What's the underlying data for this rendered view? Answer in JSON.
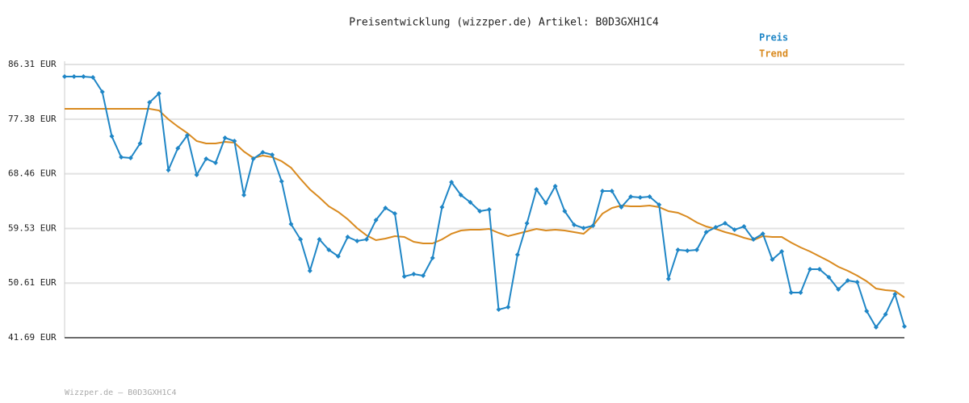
{
  "chart_data": {
    "type": "line",
    "title": "Preisentwicklung (wizzper.de) Artikel: B0D3GXH1C4",
    "footer": "Wizzper.de – B0D3GXH1C4",
    "legend_position": "top-right",
    "grid": true,
    "categories": [
      null,
      null,
      null,
      null,
      null,
      null,
      null,
      null,
      null,
      null,
      null,
      null,
      null,
      null,
      null,
      null,
      null,
      null,
      null,
      null,
      null,
      null,
      null,
      null,
      null,
      null,
      null,
      null,
      null,
      null,
      null,
      null,
      null,
      null,
      null,
      null,
      null,
      null,
      null,
      null,
      null,
      null,
      null,
      null,
      null,
      null,
      null,
      null,
      null,
      null,
      null,
      null,
      null,
      null,
      null,
      null,
      null,
      null,
      null,
      null,
      null,
      null,
      null,
      null,
      null,
      null,
      null,
      null,
      null,
      null,
      null,
      null,
      null,
      null,
      null,
      null,
      null,
      null,
      null,
      null,
      null,
      null,
      null,
      null,
      null,
      null,
      null,
      null,
      null,
      null
    ],
    "ylim": [
      41.69,
      86.31
    ],
    "yticks": [
      {
        "value": 41.69,
        "label": "41.69 EUR"
      },
      {
        "value": 50.61,
        "label": "50.61 EUR"
      },
      {
        "value": 59.53,
        "label": "59.53 EUR"
      },
      {
        "value": 68.46,
        "label": "68.46 EUR"
      },
      {
        "value": 77.38,
        "label": "77.38 EUR"
      },
      {
        "value": 86.31,
        "label": "86.31 EUR"
      }
    ],
    "series": [
      {
        "name": "Preis",
        "color": "#1f86c6",
        "markers": true,
        "values": [
          84.34,
          84.34,
          84.34,
          84.2,
          81.83,
          74.59,
          71.17,
          71.04,
          73.41,
          80.12,
          81.57,
          69.07,
          72.62,
          74.73,
          68.28,
          70.91,
          70.25,
          74.33,
          73.81,
          64.99,
          70.91,
          71.96,
          71.57,
          67.22,
          60.25,
          57.75,
          52.61,
          57.75,
          56.04,
          54.98,
          58.14,
          57.48,
          57.75,
          60.91,
          62.88,
          61.96,
          51.69,
          52.09,
          51.82,
          54.72,
          63.01,
          67.09,
          64.99,
          63.8,
          62.35,
          62.62,
          46.29,
          46.69,
          55.25,
          60.38,
          65.91,
          63.67,
          66.43,
          62.35,
          60.12,
          59.59,
          59.98,
          65.64,
          65.64,
          63.01,
          64.72,
          64.59,
          64.72,
          63.41,
          51.3,
          56.04,
          55.9,
          56.04,
          58.93,
          59.72,
          60.38,
          59.33,
          59.85,
          57.75,
          58.67,
          54.46,
          55.77,
          49.06,
          49.06,
          52.88,
          52.88,
          51.56,
          49.59,
          51.03,
          50.77,
          46.03,
          43.4,
          45.5,
          48.8,
          43.53
        ]
      },
      {
        "name": "Trend",
        "color": "#d98a1f",
        "markers": false,
        "values": [
          79.07,
          79.07,
          79.07,
          79.07,
          79.07,
          79.07,
          79.07,
          79.07,
          79.07,
          79.07,
          78.81,
          77.36,
          76.17,
          75.12,
          73.81,
          73.41,
          73.41,
          73.67,
          73.54,
          72.09,
          71.04,
          71.44,
          71.17,
          70.51,
          69.46,
          67.62,
          65.91,
          64.59,
          63.14,
          62.22,
          61.04,
          59.59,
          58.4,
          57.61,
          57.88,
          58.27,
          58.14,
          57.35,
          57.09,
          57.09,
          57.75,
          58.67,
          59.19,
          59.33,
          59.33,
          59.46,
          58.8,
          58.27,
          58.67,
          59.06,
          59.46,
          59.19,
          59.33,
          59.19,
          58.93,
          58.67,
          59.98,
          61.96,
          62.88,
          63.27,
          63.14,
          63.14,
          63.27,
          63.01,
          62.35,
          62.09,
          61.43,
          60.51,
          59.85,
          59.46,
          58.93,
          58.54,
          58.01,
          57.61,
          58.27,
          58.14,
          58.14,
          57.22,
          56.43,
          55.77,
          54.98,
          54.19,
          53.27,
          52.61,
          51.82,
          50.9,
          49.72,
          49.45,
          49.32,
          48.27
        ]
      }
    ]
  }
}
